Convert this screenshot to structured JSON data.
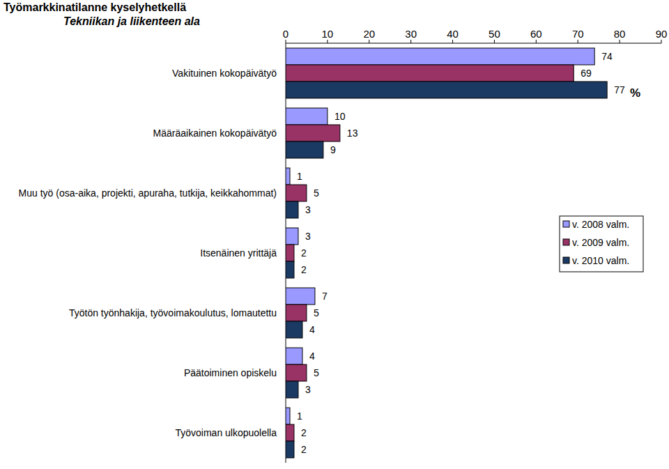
{
  "chart_data": {
    "type": "bar",
    "orientation": "horizontal",
    "title": "Työmarkkinatilanne kyselyhetkellä",
    "subtitle": "Tekniikan ja liikenteen ala",
    "x_label": "%",
    "categories": [
      "Vakituinen kokopäivätyö",
      "Määräaikainen kokopäivätyö",
      "Muu työ (osa-aika, projekti, apuraha, tutkija, keikkahommat)",
      "Itsenäinen yrittäjä",
      "Työtön työnhakija, työvoimakoulutus, lomautettu",
      "Päätoiminen opiskelu",
      "Työvoiman ulkopuolella"
    ],
    "series": [
      {
        "name": "v. 2008 valm.",
        "color": "#9999ff",
        "values": [
          74,
          10,
          1,
          3,
          7,
          4,
          1
        ]
      },
      {
        "name": "v. 2009 valm.",
        "color": "#993366",
        "values": [
          69,
          13,
          5,
          2,
          5,
          5,
          2
        ]
      },
      {
        "name": "v. 2010 valm.",
        "color": "#1b3a63",
        "values": [
          77,
          9,
          3,
          2,
          4,
          3,
          2
        ]
      }
    ],
    "xlim": [
      0,
      90
    ],
    "xticks": [
      0,
      10,
      20,
      30,
      40,
      50,
      60,
      70,
      80,
      90
    ],
    "grid": false,
    "legend": "right",
    "data_labels": true
  }
}
